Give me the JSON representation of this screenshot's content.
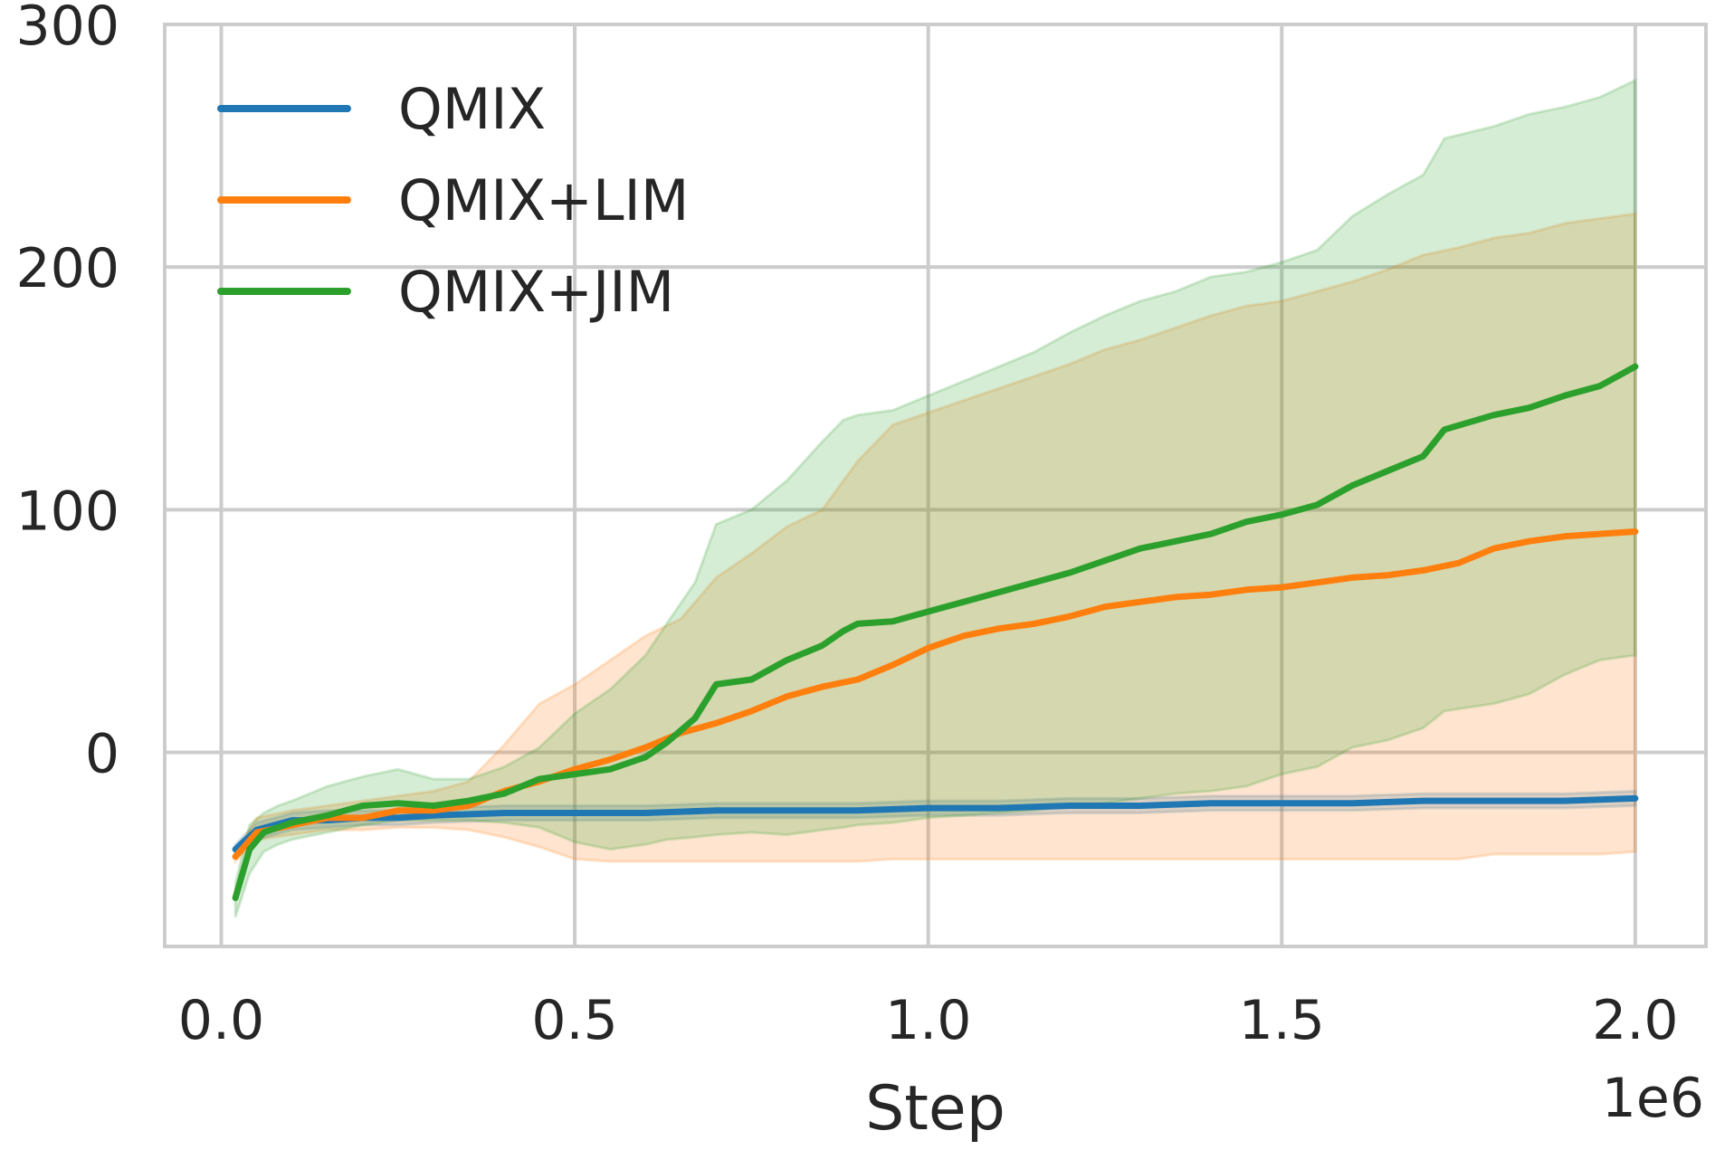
{
  "chart_data": {
    "type": "line",
    "title": "",
    "xlabel": "Step",
    "ylabel": "",
    "x_offset_label": "1e6",
    "xlim": [
      -0.08,
      2.1
    ],
    "ylim": [
      -80,
      300
    ],
    "x_ticks": [
      0.0,
      0.5,
      1.0,
      1.5,
      2.0
    ],
    "x_tick_labels": [
      "0.0",
      "0.5",
      "1.0",
      "1.5",
      "2.0"
    ],
    "y_ticks": [
      0,
      100,
      200,
      300
    ],
    "y_tick_labels": [
      "0",
      "100",
      "200",
      "300"
    ],
    "grid": true,
    "legend_position": "top-left",
    "series": [
      {
        "name": "QMIX",
        "color": "#1f77b4",
        "x": [
          0.02,
          0.05,
          0.1,
          0.15,
          0.2,
          0.25,
          0.3,
          0.4,
          0.5,
          0.6,
          0.7,
          0.8,
          0.9,
          1.0,
          1.1,
          1.2,
          1.3,
          1.4,
          1.5,
          1.6,
          1.7,
          1.8,
          1.9,
          2.0
        ],
        "mean": [
          -40,
          -32,
          -28,
          -28,
          -27,
          -27,
          -26,
          -25,
          -25,
          -25,
          -24,
          -24,
          -24,
          -23,
          -23,
          -22,
          -22,
          -21,
          -21,
          -21,
          -20,
          -20,
          -20,
          -19
        ],
        "lower": [
          -42,
          -36,
          -32,
          -31,
          -30,
          -30,
          -29,
          -28,
          -28,
          -28,
          -27,
          -27,
          -27,
          -26,
          -26,
          -25,
          -25,
          -24,
          -24,
          -24,
          -23,
          -23,
          -23,
          -22
        ],
        "upper": [
          -38,
          -29,
          -25,
          -24,
          -24,
          -24,
          -23,
          -22,
          -22,
          -22,
          -21,
          -21,
          -21,
          -20,
          -20,
          -19,
          -19,
          -18,
          -18,
          -18,
          -17,
          -17,
          -17,
          -16
        ]
      },
      {
        "name": "QMIX+LIM",
        "color": "#ff7f0e",
        "x": [
          0.02,
          0.05,
          0.1,
          0.15,
          0.2,
          0.25,
          0.3,
          0.35,
          0.4,
          0.45,
          0.5,
          0.55,
          0.6,
          0.65,
          0.7,
          0.75,
          0.8,
          0.85,
          0.9,
          0.95,
          1.0,
          1.05,
          1.1,
          1.15,
          1.2,
          1.25,
          1.3,
          1.35,
          1.4,
          1.45,
          1.5,
          1.55,
          1.6,
          1.65,
          1.7,
          1.75,
          1.8,
          1.85,
          1.9,
          1.95,
          2.0
        ],
        "mean": [
          -43,
          -33,
          -30,
          -27,
          -27,
          -24,
          -24,
          -22,
          -16,
          -12,
          -7,
          -3,
          2,
          8,
          12,
          17,
          23,
          27,
          30,
          36,
          43,
          48,
          51,
          53,
          56,
          60,
          62,
          64,
          65,
          67,
          68,
          70,
          72,
          73,
          75,
          78,
          84,
          87,
          89,
          90,
          91
        ],
        "lower": [
          -45,
          -36,
          -34,
          -32,
          -32,
          -31,
          -31,
          -32,
          -35,
          -39,
          -44,
          -45,
          -45,
          -45,
          -45,
          -45,
          -45,
          -45,
          -45,
          -44,
          -44,
          -44,
          -44,
          -44,
          -44,
          -44,
          -44,
          -44,
          -44,
          -44,
          -44,
          -44,
          -44,
          -44,
          -44,
          -44,
          -42,
          -42,
          -42,
          -42,
          -41
        ],
        "upper": [
          -41,
          -27,
          -24,
          -22,
          -20,
          -18,
          -16,
          -12,
          3,
          20,
          28,
          38,
          48,
          55,
          72,
          82,
          93,
          100,
          120,
          135,
          140,
          145,
          150,
          155,
          160,
          166,
          170,
          175,
          180,
          184,
          186,
          190,
          194,
          199,
          205,
          208,
          212,
          214,
          218,
          220,
          222
        ]
      },
      {
        "name": "QMIX+JIM",
        "color": "#2ca02c",
        "x": [
          0.02,
          0.04,
          0.06,
          0.08,
          0.1,
          0.15,
          0.2,
          0.25,
          0.3,
          0.35,
          0.4,
          0.45,
          0.5,
          0.55,
          0.6,
          0.63,
          0.67,
          0.7,
          0.75,
          0.8,
          0.85,
          0.88,
          0.9,
          0.95,
          1.0,
          1.05,
          1.1,
          1.15,
          1.2,
          1.25,
          1.3,
          1.35,
          1.4,
          1.45,
          1.5,
          1.55,
          1.6,
          1.65,
          1.7,
          1.73,
          1.8,
          1.85,
          1.9,
          1.95,
          2.0
        ],
        "mean": [
          -60,
          -40,
          -33,
          -31,
          -29,
          -26,
          -22,
          -21,
          -22,
          -20,
          -17,
          -11,
          -9,
          -7,
          -2,
          4,
          14,
          28,
          30,
          38,
          44,
          50,
          53,
          54,
          58,
          62,
          66,
          70,
          74,
          79,
          84,
          87,
          90,
          95,
          98,
          102,
          110,
          116,
          122,
          133,
          139,
          142,
          147,
          151,
          159
        ],
        "lower": [
          -68,
          -50,
          -41,
          -38,
          -36,
          -33,
          -30,
          -28,
          -28,
          -28,
          -29,
          -31,
          -37,
          -40,
          -38,
          -36,
          -35,
          -34,
          -33,
          -34,
          -32,
          -31,
          -30,
          -29,
          -27,
          -26,
          -25,
          -24,
          -22,
          -21,
          -19,
          -17,
          -16,
          -14,
          -9,
          -6,
          2,
          5,
          10,
          17,
          20,
          24,
          32,
          38,
          40
        ],
        "upper": [
          -54,
          -30,
          -25,
          -22,
          -20,
          -14,
          -10,
          -7,
          -11,
          -11,
          -6,
          2,
          16,
          26,
          40,
          53,
          70,
          94,
          100,
          112,
          128,
          137,
          139,
          141,
          147,
          153,
          159,
          165,
          173,
          180,
          186,
          190,
          196,
          198,
          202,
          207,
          221,
          230,
          238,
          253,
          258,
          263,
          266,
          270,
          277
        ]
      }
    ]
  }
}
